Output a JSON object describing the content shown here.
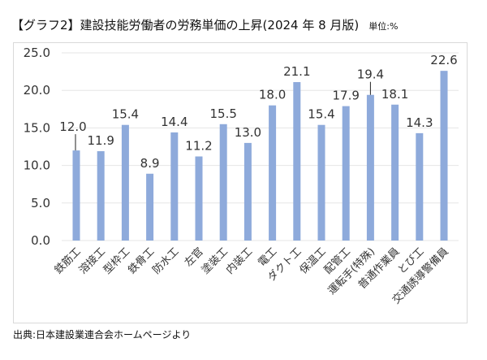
{
  "header": {
    "title": "【グラフ2】建設技能労働者の労務単価の上昇(2024 年 8 月版)",
    "unit": "単位:%"
  },
  "footer": {
    "source": "出典:日本建設業連合会ホームページより"
  },
  "colors": {
    "bar": "#8eaadb",
    "grid": "#e6e6e6",
    "text": "#333333"
  },
  "chart_data": {
    "type": "bar",
    "title": "【グラフ2】建設技能労働者の労務単価の上昇(2024 年 8 月版)",
    "xlabel": "",
    "ylabel": "単位:%",
    "ylim": [
      0,
      25
    ],
    "yticks": [
      0.0,
      5.0,
      10.0,
      15.0,
      20.0,
      25.0
    ],
    "ytick_labels": [
      "0.0",
      "5.0",
      "10.0",
      "15.0",
      "20.0",
      "25.0"
    ],
    "grid": true,
    "legend": "none",
    "categories": [
      "鉄筋工",
      "溶接工",
      "型枠工",
      "鉄骨工",
      "防水工",
      "左官",
      "塗装工",
      "内装工",
      "電工",
      "ダクト工",
      "保温工",
      "配管工",
      "運転手(特殊)",
      "普通作業員",
      "とび工",
      "交通誘導警備員"
    ],
    "values": [
      12.0,
      11.9,
      15.4,
      8.9,
      14.4,
      11.2,
      15.5,
      13.0,
      18.0,
      21.1,
      15.4,
      17.9,
      19.4,
      18.1,
      14.3,
      22.6
    ],
    "data_labels": [
      "12.0",
      "11.9",
      "15.4",
      "8.9",
      "14.4",
      "11.2",
      "15.5",
      "13.0",
      "18.0",
      "21.1",
      "15.4",
      "17.9",
      "19.4",
      "18.1",
      "14.3",
      "22.6"
    ]
  }
}
